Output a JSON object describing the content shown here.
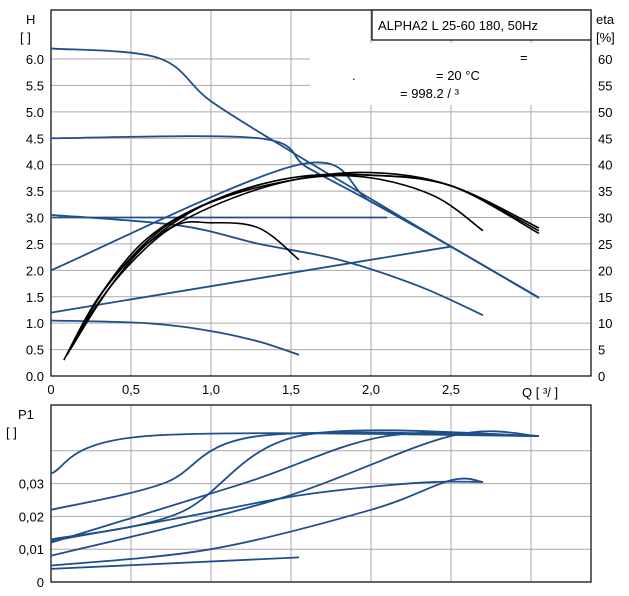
{
  "chart_data": [
    {
      "type": "line",
      "title_box": "ALPHA2 L 25-60 180, 50Hz",
      "info_line1": "=",
      "info_line2": ".",
      "info_temp": "= 20 °C",
      "info_density": "= 998.2   /  ³",
      "y_left_label": "H",
      "y_left_unit": "[   ]",
      "y_right_label": "eta",
      "y_right_unit": "[%]",
      "x_label": "Q [  ³/  ]",
      "xlim": [
        0,
        3.4
      ],
      "ylim_left": [
        0,
        6.0
      ],
      "ylim_right": [
        0,
        60
      ],
      "x_ticks": [
        "0",
        "0,5",
        "1,0",
        "1,5",
        "2,0",
        "2,5"
      ],
      "y_left_ticks": [
        "0.0",
        "0.5",
        "1.0",
        "1.5",
        "2.0",
        "2.5",
        "3.0",
        "3.5",
        "4.0",
        "4.5",
        "5.0",
        "5.5",
        "6.0"
      ],
      "y_right_ticks": [
        "0",
        "5",
        "10",
        "15",
        "20",
        "25",
        "30",
        "35",
        "40",
        "45",
        "50",
        "55",
        "60"
      ],
      "head_curves": [
        {
          "points": [
            [
              0,
              6.2
            ],
            [
              0.67,
              6.02
            ],
            [
              1.0,
              5.2
            ],
            [
              1.5,
              4.25
            ],
            [
              2.0,
              3.35
            ],
            [
              2.5,
              2.45
            ],
            [
              3.05,
              1.48
            ]
          ]
        },
        {
          "points": [
            [
              0,
              4.5
            ],
            [
              1.3,
              4.5
            ],
            [
              1.6,
              3.95
            ],
            [
              2.0,
              3.3
            ],
            [
              2.5,
              2.45
            ],
            [
              3.05,
              1.48
            ]
          ]
        },
        {
          "points": [
            [
              0,
              3.0
            ],
            [
              2.1,
              3.0
            ]
          ]
        },
        {
          "points": [
            [
              0,
              3.05
            ],
            [
              0.8,
              2.85
            ],
            [
              1.3,
              2.5
            ],
            [
              1.8,
              2.2
            ],
            [
              2.3,
              1.7
            ],
            [
              2.7,
              1.15
            ]
          ]
        },
        {
          "points": [
            [
              0,
              1.05
            ],
            [
              0.6,
              1.0
            ],
            [
              1.0,
              0.85
            ],
            [
              1.3,
              0.65
            ],
            [
              1.55,
              0.4
            ]
          ]
        },
        {
          "points": [
            [
              0,
              1.2
            ],
            [
              2.5,
              2.45
            ]
          ]
        },
        {
          "points": [
            [
              0,
              2.0
            ],
            [
              1.55,
              4.0
            ],
            [
              2.0,
              3.3
            ],
            [
              2.5,
              2.45
            ],
            [
              3.05,
              1.48
            ]
          ]
        }
      ],
      "eta_curves": [
        {
          "points": [
            [
              0.08,
              3
            ],
            [
              0.3,
              15
            ],
            [
              0.6,
              25
            ],
            [
              1.0,
              32
            ],
            [
              1.5,
              37
            ],
            [
              2.0,
              38.5
            ],
            [
              2.5,
              36
            ],
            [
              3.05,
              27.5
            ]
          ]
        },
        {
          "points": [
            [
              0.1,
              4
            ],
            [
              0.3,
              15
            ],
            [
              0.6,
              26
            ],
            [
              1.0,
              33
            ],
            [
              1.5,
              37.5
            ],
            [
              2.0,
              38
            ],
            [
              2.5,
              36
            ],
            [
              3.05,
              27
            ]
          ]
        },
        {
          "points": [
            [
              0.12,
              5
            ],
            [
              0.35,
              17
            ],
            [
              0.7,
              28
            ],
            [
              1.1,
              34
            ],
            [
              1.6,
              37.5
            ],
            [
              2.0,
              37.5
            ],
            [
              2.4,
              34
            ],
            [
              2.7,
              27.5
            ]
          ]
        },
        {
          "points": [
            [
              0.12,
              5
            ],
            [
              0.4,
              18
            ],
            [
              0.75,
              28
            ],
            [
              1.0,
              29
            ],
            [
              1.3,
              28
            ],
            [
              1.55,
              22
            ]
          ]
        },
        {
          "points": [
            [
              0.1,
              4
            ],
            [
              0.3,
              14
            ],
            [
              0.6,
              25
            ],
            [
              1.0,
              33
            ],
            [
              1.5,
              37.5
            ],
            [
              2.0,
              38
            ],
            [
              2.5,
              36
            ],
            [
              3.05,
              28
            ]
          ]
        }
      ]
    },
    {
      "type": "line",
      "y_label": "P1",
      "y_unit": "[     ]",
      "xlim": [
        0,
        3.4
      ],
      "ylim": [
        0,
        0.045
      ],
      "y_ticks": [
        "0",
        "0,01",
        "0,02",
        "0,03"
      ],
      "power_curves": [
        {
          "points": [
            [
              0,
              0.033
            ],
            [
              0.6,
              0.0445
            ],
            [
              3.05,
              0.0445
            ]
          ]
        },
        {
          "points": [
            [
              0,
              0.022
            ],
            [
              0.7,
              0.03
            ],
            [
              1.3,
              0.0445
            ],
            [
              3.05,
              0.0445
            ]
          ]
        },
        {
          "points": [
            [
              0,
              0.013
            ],
            [
              0.8,
              0.021
            ],
            [
              1.55,
              0.0445
            ],
            [
              3.05,
              0.0445
            ]
          ]
        },
        {
          "points": [
            [
              0,
              0.012
            ],
            [
              1.2,
              0.03
            ],
            [
              2.1,
              0.0445
            ],
            [
              3.05,
              0.0445
            ]
          ]
        },
        {
          "points": [
            [
              0,
              0.008
            ],
            [
              1.4,
              0.025
            ],
            [
              2.5,
              0.0445
            ],
            [
              3.05,
              0.0445
            ]
          ]
        },
        {
          "points": [
            [
              0,
              0.005
            ],
            [
              1.0,
              0.01
            ],
            [
              2.0,
              0.022
            ],
            [
              2.5,
              0.031
            ],
            [
              2.7,
              0.0305
            ]
          ]
        },
        {
          "points": [
            [
              0,
              0.004
            ],
            [
              1.55,
              0.0075
            ]
          ]
        },
        {
          "points": [
            [
              0,
              0.0125
            ],
            [
              0.8,
              0.0195
            ],
            [
              1.5,
              0.026
            ],
            [
              2.0,
              0.029
            ],
            [
              2.4,
              0.0305
            ],
            [
              2.7,
              0.0305
            ]
          ]
        }
      ]
    }
  ]
}
